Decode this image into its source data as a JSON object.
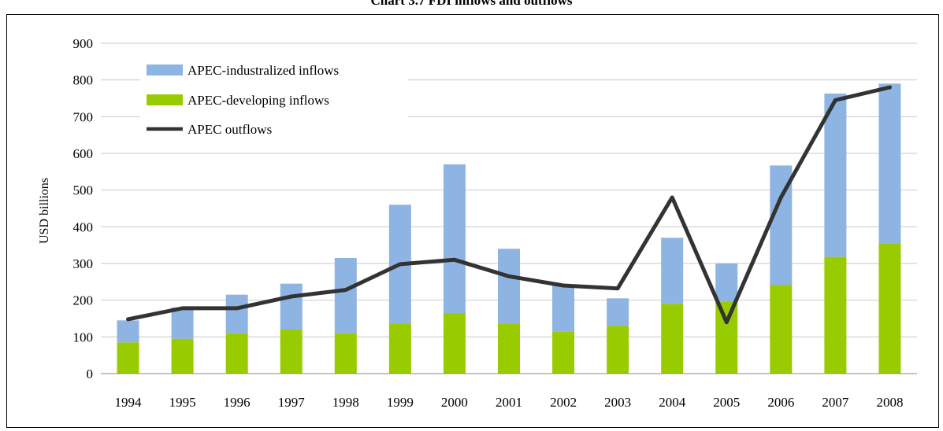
{
  "chart_data": {
    "type": "bar",
    "title": "Chart 3.7 FDI inflows and outflows",
    "ylabel": "USD billions",
    "xlabel": "",
    "ylim": [
      0,
      900
    ],
    "yticks": [
      0,
      100,
      200,
      300,
      400,
      500,
      600,
      700,
      800,
      900
    ],
    "grid": true,
    "stacked": true,
    "legend_position": "top-left",
    "categories": [
      "1994",
      "1995",
      "1996",
      "1997",
      "1998",
      "1999",
      "2000",
      "2001",
      "2002",
      "2003",
      "2004",
      "2005",
      "2006",
      "2007",
      "2008"
    ],
    "series": [
      {
        "name": "APEC-industralized inflows",
        "kind": "bar",
        "color": "#8EB4E3",
        "values": [
          60,
          85,
          105,
          125,
          205,
          325,
          405,
          205,
          125,
          75,
          180,
          105,
          325,
          445,
          435
        ]
      },
      {
        "name": "APEC-developing inflows",
        "kind": "bar",
        "color": "#99CC00",
        "values": [
          85,
          95,
          110,
          120,
          110,
          135,
          165,
          135,
          115,
          130,
          190,
          195,
          242,
          318,
          355
        ]
      },
      {
        "name": "APEC outflows",
        "kind": "line",
        "color": "#333333",
        "values": [
          148,
          178,
          178,
          210,
          228,
          298,
          310,
          265,
          240,
          232,
          480,
          140,
          480,
          745,
          780
        ]
      }
    ]
  }
}
